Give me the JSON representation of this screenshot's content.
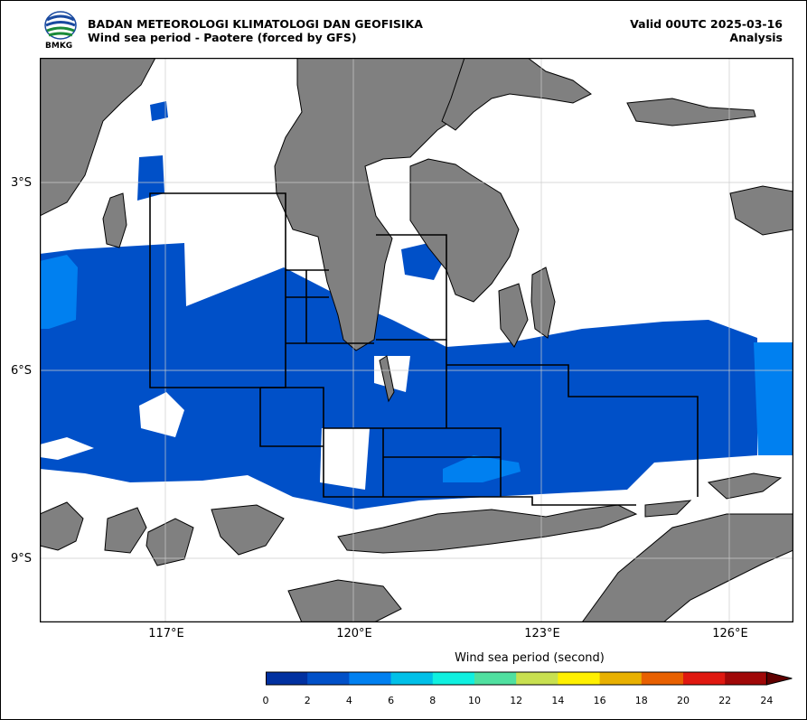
{
  "header": {
    "agency": "BADAN METEOROLOGI KLIMATOLOGI DAN GEOFISIKA",
    "subtitle": "Wind sea period - Paotere (forced by GFS)",
    "valid": "Valid 00UTC 2025-03-16",
    "analysis": "Analysis",
    "logo_text": "BMKG"
  },
  "axes": {
    "lat_labels": [
      "3°S",
      "6°S",
      "9°S"
    ],
    "lon_labels": [
      "117°E",
      "120°E",
      "123°E",
      "126°E"
    ]
  },
  "colors": {
    "land": "#808080",
    "sea_2_4": "#0050c8",
    "sea_4_6": "#0080f0",
    "ocean_blank": "#ffffff"
  },
  "colorbar": {
    "title": "Wind sea period (second)",
    "ticks": [
      "0",
      "2",
      "4",
      "6",
      "8",
      "10",
      "12",
      "14",
      "16",
      "18",
      "20",
      "22",
      "24"
    ],
    "colors": [
      "#0030a0",
      "#0050c8",
      "#0080f0",
      "#00c0e8",
      "#10f0e0",
      "#50e0a0",
      "#c8e050",
      "#fff000",
      "#e8b000",
      "#e86000",
      "#e01810",
      "#a00808",
      "#600000"
    ]
  }
}
